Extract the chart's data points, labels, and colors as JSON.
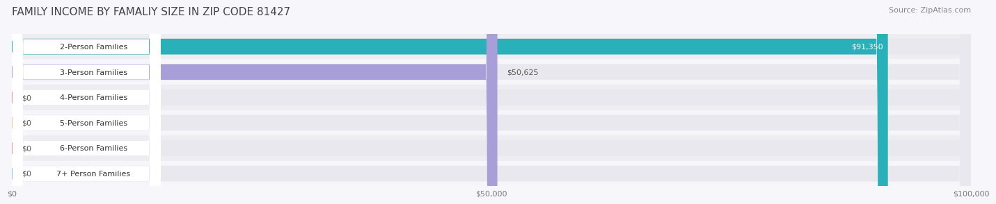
{
  "title": "FAMILY INCOME BY FAMALIY SIZE IN ZIP CODE 81427",
  "source": "Source: ZipAtlas.com",
  "categories": [
    "2-Person Families",
    "3-Person Families",
    "4-Person Families",
    "5-Person Families",
    "6-Person Families",
    "7+ Person Families"
  ],
  "values": [
    91350,
    50625,
    0,
    0,
    0,
    0
  ],
  "bar_colors": [
    "#2ab0b8",
    "#a89fd8",
    "#f08ba0",
    "#f5c68a",
    "#f09898",
    "#96bedd"
  ],
  "label_colors": [
    "#2ab0b8",
    "#a89fd8",
    "#f08ba0",
    "#f5c68a",
    "#f09898",
    "#96bedd"
  ],
  "bar_bg_color": "#e8e8ee",
  "row_bg_colors": [
    "#f0f0f5",
    "#f5f5fa"
  ],
  "xlim": [
    0,
    100000
  ],
  "xticks": [
    0,
    50000,
    100000
  ],
  "xtick_labels": [
    "$0",
    "$50,000",
    "$100,000"
  ],
  "value_labels": [
    "$91,350",
    "$50,625",
    "$0",
    "$0",
    "$0",
    "$0"
  ],
  "title_fontsize": 11,
  "source_fontsize": 8,
  "label_fontsize": 8,
  "value_fontsize": 8,
  "background_color": "#f7f7fb"
}
